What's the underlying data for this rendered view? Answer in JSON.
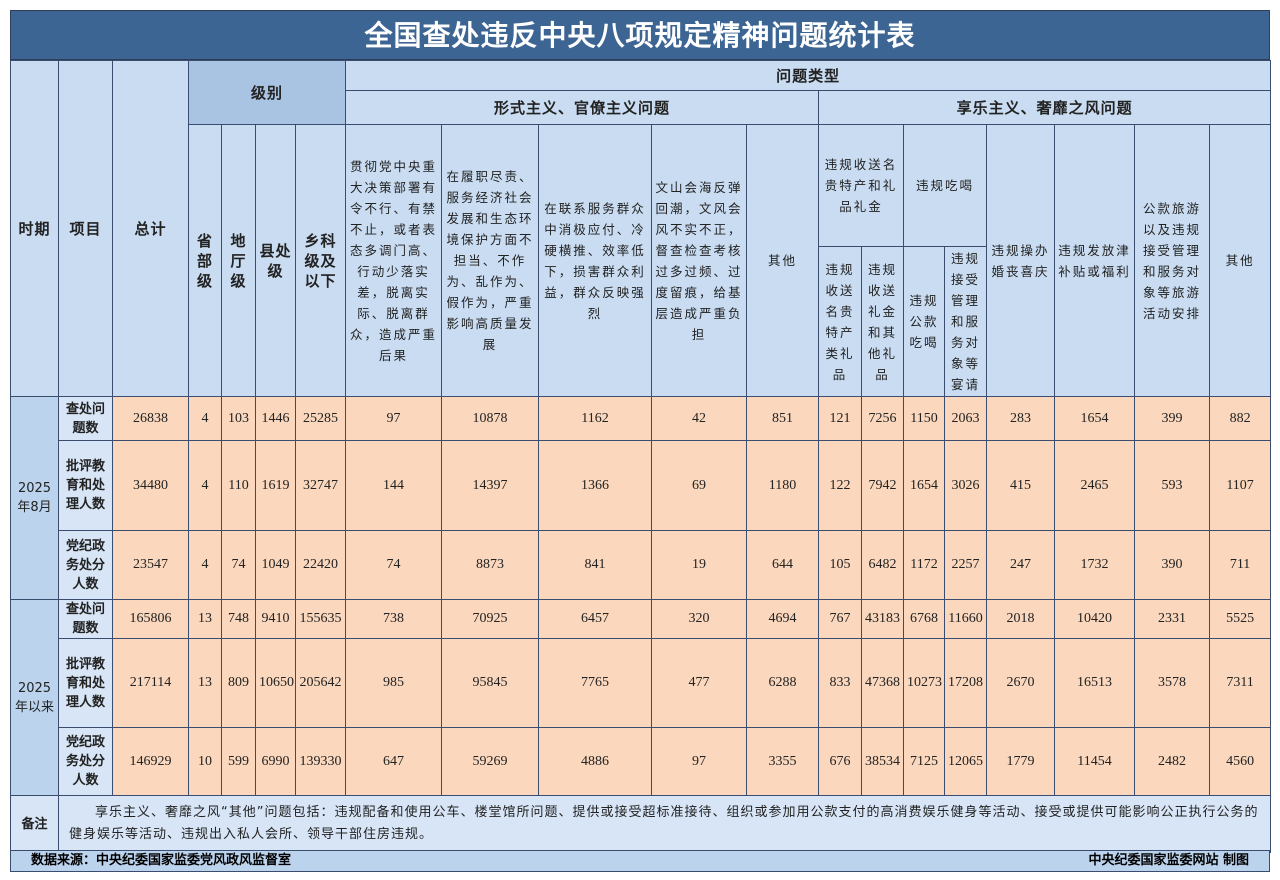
{
  "title": "全国查处违反中央八项规定精神问题统计表",
  "header": {
    "period": "时期",
    "item": "项目",
    "total": "总计",
    "level": "级别",
    "levels": [
      "省部级",
      "地厅级",
      "县处级",
      "乡科级及以下"
    ],
    "problem_type": "问题类型",
    "formalism": {
      "title": "形式主义、官僚主义问题",
      "columns": [
        "贯彻党中央重大决策部署有令不行、有禁不止，或者表态多调门高、行动少落实差，脱离实际、脱离群众，造成严重后果",
        "在履职尽责、服务经济社会发展和生态环境保护方面不担当、不作为、乱作为、假作为，严重影响高质量发展",
        "在联系服务群众中消极应付、冷硬横推、效率低下，损害群众利益，群众反映强烈",
        "文山会海反弹回潮，文风会风不实不正，督查检查考核过多过频、过度留痕，给基层造成严重负担",
        "其他"
      ]
    },
    "hedonism": {
      "title": "享乐主义、奢靡之风问题",
      "columns": [
        {
          "label": "违规收送名贵特产和礼品礼金",
          "sub": [
            "违规收送名贵特产类礼品",
            "违规收送礼金和其他礼品"
          ]
        },
        {
          "label": "违规吃喝",
          "sub": [
            "违规公款吃喝",
            "违规接受管理和服务对象等宴请"
          ]
        },
        {
          "label": "违规操办婚丧喜庆"
        },
        {
          "label": "违规发放津补贴或福利"
        },
        {
          "label": "公款旅游以及违规接受管理和服务对象等旅游活动安排"
        },
        {
          "label": "其他"
        }
      ]
    }
  },
  "periods": [
    {
      "label": "2025年8月",
      "rows": [
        {
          "item": "查处问题数",
          "values": [
            26838,
            4,
            103,
            1446,
            25285,
            97,
            10878,
            1162,
            42,
            851,
            121,
            7256,
            1150,
            2063,
            283,
            1654,
            399,
            882
          ]
        },
        {
          "item": "批评教育和处理人数",
          "values": [
            34480,
            4,
            110,
            1619,
            32747,
            144,
            14397,
            1366,
            69,
            1180,
            122,
            7942,
            1654,
            3026,
            415,
            2465,
            593,
            1107
          ]
        },
        {
          "item": "党纪政务处分人数",
          "values": [
            23547,
            4,
            74,
            1049,
            22420,
            74,
            8873,
            841,
            19,
            644,
            105,
            6482,
            1172,
            2257,
            247,
            1732,
            390,
            711
          ]
        }
      ]
    },
    {
      "label": "2025年以来",
      "rows": [
        {
          "item": "查处问题数",
          "values": [
            165806,
            13,
            748,
            9410,
            155635,
            738,
            70925,
            6457,
            320,
            4694,
            767,
            43183,
            6768,
            11660,
            2018,
            10420,
            2331,
            5525
          ]
        },
        {
          "item": "批评教育和处理人数",
          "values": [
            217114,
            13,
            809,
            10650,
            205642,
            985,
            95845,
            7765,
            477,
            6288,
            833,
            47368,
            10273,
            17208,
            2670,
            16513,
            3578,
            7311
          ]
        },
        {
          "item": "党纪政务处分人数",
          "values": [
            146929,
            10,
            599,
            6990,
            139330,
            647,
            59269,
            4886,
            97,
            3355,
            676,
            38534,
            7125,
            12065,
            1779,
            11454,
            2482,
            4560
          ]
        }
      ]
    }
  ],
  "note": {
    "label": "备注",
    "text": "享乐主义、奢靡之风“其他”问题包括：违规配备和使用公车、楼堂馆所问题、提供或接受超标准接待、组织或参加用公款支付的高消费娱乐健身等活动、接受或提供可能影响公正执行公务的健身娱乐等活动、违规出入私人会所、领导干部住房违规。"
  },
  "footer": {
    "source": "数据来源：中央纪委国家监委党风政风监督室",
    "credit": "中央纪委国家监委网站 制图"
  }
}
